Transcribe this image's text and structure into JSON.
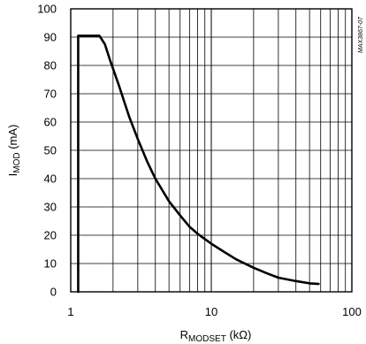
{
  "chart_data": {
    "type": "line",
    "x_scale": "log",
    "y_scale": "linear",
    "xlim": [
      1,
      100
    ],
    "ylim": [
      0,
      100
    ],
    "grid": true,
    "legend": "none",
    "xlabel": {
      "main": "R",
      "sub": "MODSET",
      "unit": " (kΩ)"
    },
    "ylabel": {
      "main": "I",
      "sub": "MOD",
      "unit": " (mA)"
    },
    "x_ticks": [
      1,
      10,
      100
    ],
    "x_tick_labels": [
      "1",
      "10",
      "100"
    ],
    "y_ticks": [
      0,
      10,
      20,
      30,
      40,
      50,
      60,
      70,
      80,
      90,
      100
    ],
    "y_tick_labels": [
      "0",
      "10",
      "20",
      "30",
      "40",
      "50",
      "60",
      "70",
      "80",
      "90",
      "100"
    ],
    "corner_note": "MAX3867-07",
    "series": [
      {
        "color": "#000000",
        "x": [
          1.13,
          1.13,
          1.16,
          1.6,
          1.75,
          1.9,
          2.2,
          2.6,
          3.0,
          3.5,
          4.0,
          5.0,
          6.0,
          7.0,
          8.0,
          10.0,
          12.0,
          15.0,
          20.0,
          25.0,
          30.0,
          40.0,
          50.0,
          58.0
        ],
        "y": [
          0,
          90.5,
          90.5,
          90.5,
          87.5,
          82,
          73,
          62,
          54,
          46,
          40,
          32,
          27,
          23,
          20.5,
          17,
          14.5,
          11.5,
          8.5,
          6.5,
          5.0,
          3.8,
          3.0,
          2.8
        ]
      }
    ]
  }
}
